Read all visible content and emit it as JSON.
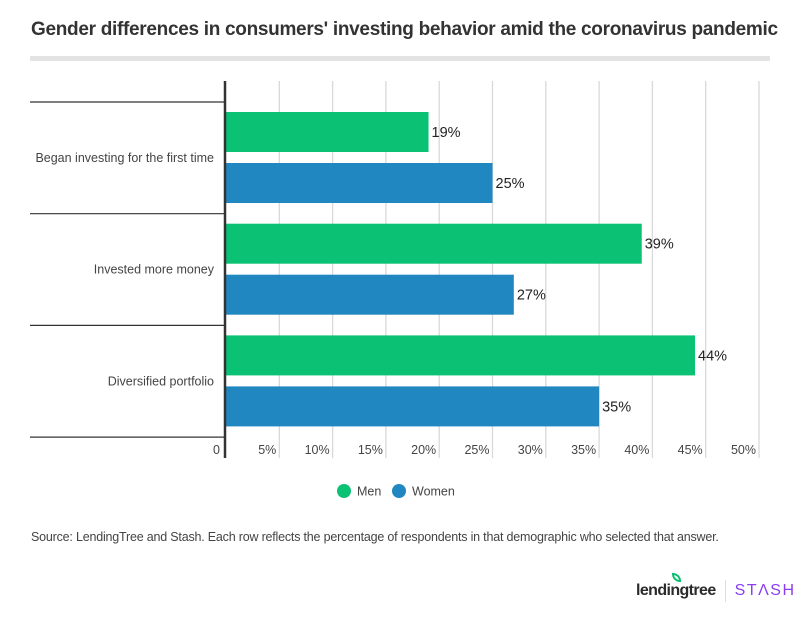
{
  "title": "Gender differences in consumers' investing behavior amid the coronavirus pandemic",
  "source_note": "Source: LendingTree and Stash. Each row reflects the percentage of respondents in that demographic who selected that answer.",
  "logos": {
    "lendingtree": "lendingtree",
    "stash": "STΛSH"
  },
  "colors": {
    "men": "#0bc173",
    "women": "#2187c1",
    "grid": "#d9d9d9",
    "axis": "#333333"
  },
  "chart_data": {
    "type": "bar",
    "orientation": "horizontal",
    "title": "Gender differences in consumers' investing behavior amid the coronavirus pandemic",
    "xlabel": "",
    "ylabel": "",
    "categories": [
      "Began investing for the first time",
      "Invested more money",
      "Diversified portfolio"
    ],
    "series": [
      {
        "name": "Men",
        "color": "#0bc173",
        "values": [
          19,
          39,
          44
        ],
        "labels": [
          "19%",
          "39%",
          "44%"
        ]
      },
      {
        "name": "Women",
        "color": "#2187c1",
        "values": [
          25,
          27,
          35
        ],
        "labels": [
          "25%",
          "27%",
          "35%"
        ]
      }
    ],
    "xlim": [
      0,
      50
    ],
    "xticks": [
      0,
      5,
      10,
      15,
      20,
      25,
      30,
      35,
      40,
      45,
      50
    ],
    "xtick_labels": [
      "0",
      "5%",
      "10%",
      "15%",
      "20%",
      "25%",
      "30%",
      "35%",
      "40%",
      "45%",
      "50%"
    ],
    "grid": true,
    "legend": {
      "position": "bottom-center",
      "entries": [
        "Men",
        "Women"
      ]
    }
  }
}
